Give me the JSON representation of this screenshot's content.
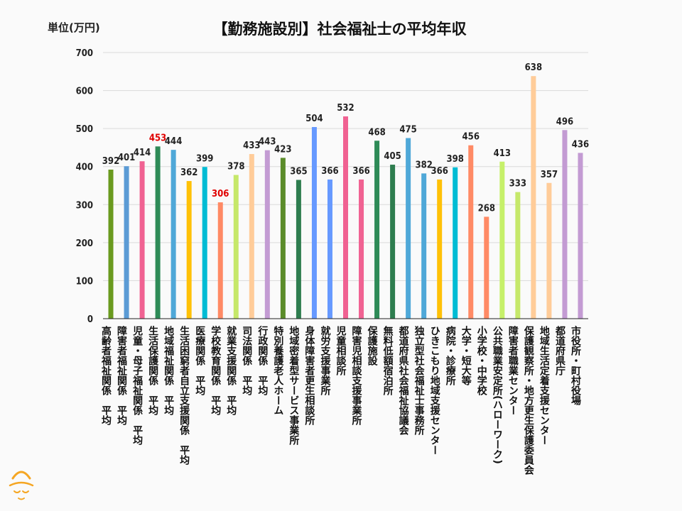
{
  "chart_data": {
    "type": "bar",
    "title": "【勤務施設別】社会福祉士の平均年収",
    "ylabel": "単位(万円)",
    "xlabel": "",
    "ylim": [
      0,
      700
    ],
    "yticks": [
      0,
      100,
      200,
      300,
      400,
      500,
      600,
      700
    ],
    "grid": true,
    "categories": [
      "高齢者福祉関係　平均",
      "障害者福祉関係　平均",
      "児童・母子福祉関係　平均",
      "生活保護関係　平均",
      "地域福祉関係　平均",
      "生活困窮者自立支援関係　平均",
      "医療関係　平均",
      "学校教育関係　平均",
      "就業支援関係　平均",
      "司法関係　平均",
      "行政関係　平均",
      "特別養護老人ホーム",
      "地域密着型サービス事業所",
      "身体障害者更生相談所",
      "就労支援事業所",
      "児童相談所",
      "障害児相談支援事業所",
      "保護施設",
      "無料低額宿泊所",
      "都道府県社会福祉協議会",
      "独立型社会福祉士事務所",
      "ひきこもり地域支援センター",
      "病院・診療所",
      "大学・短大等",
      "小学校・中学校",
      "公共職業安定所(ハローワーク)",
      "障害者職業センター",
      "保護観察所・地方更生保護委員会",
      "地域生活定着支援センター",
      "都道府県庁",
      "市役所・町村役場"
    ],
    "values": [
      392,
      401,
      414,
      453,
      444,
      362,
      399,
      306,
      378,
      433,
      443,
      423,
      365,
      504,
      366,
      532,
      366,
      468,
      405,
      475,
      382,
      366,
      398,
      456,
      268,
      413,
      333,
      638,
      357,
      496,
      436
    ],
    "bar_colors": [
      "#6a9a1f",
      "#5b9bd5",
      "#f06292",
      "#2e8b57",
      "#4fa8d8",
      "#ffc107",
      "#00bcd4",
      "#ff8a65",
      "#c6e86a",
      "#ffcc99",
      "#c39bd3",
      "#5b8c2a",
      "#2e7d4f",
      "#6699ff",
      "#6699ff",
      "#f06292",
      "#f06292",
      "#2e8b57",
      "#2e7d4f",
      "#4fa8d8",
      "#4fa8d8",
      "#ffc107",
      "#00bcd4",
      "#ff8a65",
      "#ff8a65",
      "#c6f06a",
      "#c6e86a",
      "#ffcc99",
      "#ffcc99",
      "#c39bd3",
      "#c39bd3"
    ],
    "label_colors": [
      "#222222",
      "#222222",
      "#222222",
      "#e00000",
      "#222222",
      "#222222",
      "#222222",
      "#e00000",
      "#222222",
      "#222222",
      "#222222",
      "#222222",
      "#222222",
      "#222222",
      "#222222",
      "#222222",
      "#222222",
      "#222222",
      "#222222",
      "#222222",
      "#222222",
      "#222222",
      "#222222",
      "#222222",
      "#222222",
      "#222222",
      "#222222",
      "#222222",
      "#222222",
      "#222222",
      "#222222"
    ],
    "grid_color": "#d9d9d9",
    "axis_color": "#222222"
  },
  "logo": {
    "icon": "mascot-face-icon",
    "color": "#f5a623"
  }
}
